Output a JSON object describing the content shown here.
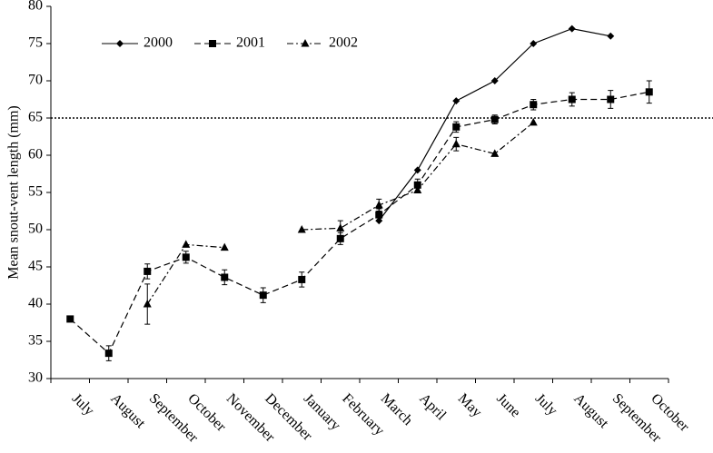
{
  "chart_data": {
    "type": "line",
    "y_label": "Mean snout-vent length (mm)",
    "categories": [
      "July",
      "August",
      "September",
      "October",
      "November",
      "December",
      "January",
      "February",
      "March",
      "April",
      "May",
      "June",
      "July",
      "August",
      "September",
      "October"
    ],
    "series": [
      {
        "name": "2000",
        "color": "#000000",
        "marker": "diamond",
        "dash": "solid",
        "values": [
          null,
          null,
          null,
          null,
          null,
          null,
          null,
          null,
          51.2,
          58,
          67.3,
          70,
          75,
          77,
          76,
          null
        ],
        "errors": [
          null,
          null,
          null,
          null,
          null,
          null,
          null,
          null,
          null,
          null,
          null,
          null,
          null,
          null,
          null,
          null
        ]
      },
      {
        "name": "2001",
        "color": "#000000",
        "marker": "square",
        "dash": "dashed",
        "values": [
          38,
          33.4,
          44.4,
          46.3,
          43.6,
          41.2,
          43.3,
          48.8,
          52,
          56,
          63.8,
          64.8,
          66.8,
          67.5,
          67.5,
          68.5
        ],
        "errors": [
          null,
          1,
          1,
          0.8,
          1,
          1,
          1,
          0.8,
          0.8,
          0.8,
          0.7,
          0.6,
          0.7,
          0.9,
          1.2,
          1.5
        ]
      },
      {
        "name": "2002",
        "color": "#000000",
        "marker": "triangle",
        "dash": "dashdot",
        "values": [
          null,
          null,
          40,
          48,
          47.6,
          null,
          50,
          50.2,
          53.3,
          55.3,
          61.5,
          60.2,
          64.4,
          null,
          null,
          null
        ],
        "errors": [
          null,
          null,
          2.7,
          null,
          null,
          null,
          null,
          1,
          0.8,
          null,
          0.9,
          null,
          null,
          null,
          null,
          null
        ]
      }
    ],
    "reference_line": 65,
    "ylim": [
      30,
      80
    ],
    "yticks": [
      30,
      35,
      40,
      45,
      50,
      55,
      60,
      65,
      70,
      75,
      80
    ],
    "grid": false,
    "legend": "top-left"
  }
}
